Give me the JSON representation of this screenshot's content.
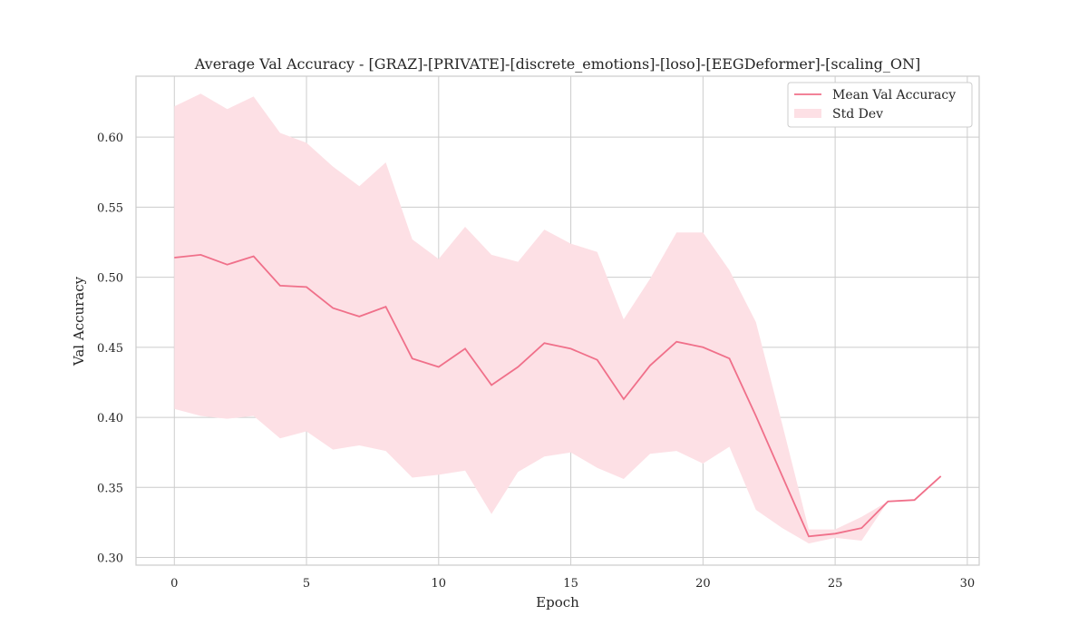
{
  "chart_data": {
    "type": "line",
    "title": "Average Val Accuracy - [GRAZ]-[PRIVATE]-[discrete_emotions]-[loso]-[EEGDeformer]-[scaling_ON]",
    "xlabel": "Epoch",
    "ylabel": "Val Accuracy",
    "xlim": [
      -1.45,
      30.45
    ],
    "ylim": [
      0.2945,
      0.6435
    ],
    "xticks": [
      0,
      5,
      10,
      15,
      20,
      25,
      30
    ],
    "yticks": [
      0.3,
      0.35,
      0.4,
      0.45,
      0.5,
      0.55,
      0.6
    ],
    "grid": true,
    "legend_position": "top-right",
    "colors": {
      "line": "#f0708a",
      "band": "#fde0e5",
      "grid": "#cccccc",
      "spine": "#cccccc"
    },
    "x": [
      0,
      1,
      2,
      3,
      4,
      5,
      6,
      7,
      8,
      9,
      10,
      11,
      12,
      13,
      14,
      15,
      16,
      17,
      18,
      19,
      20,
      21,
      22,
      23,
      24,
      25,
      26,
      27,
      28,
      29
    ],
    "series": [
      {
        "name": "Mean Val Accuracy",
        "values": [
          0.514,
          0.516,
          0.509,
          0.515,
          0.494,
          0.493,
          0.478,
          0.472,
          0.479,
          0.442,
          0.436,
          0.449,
          0.423,
          0.436,
          0.453,
          0.449,
          0.441,
          0.413,
          0.437,
          0.454,
          0.45,
          0.442,
          0.401,
          0.358,
          0.315,
          0.317,
          0.321,
          0.34,
          0.341,
          0.358
        ]
      }
    ],
    "band": {
      "name": "Std Dev",
      "upper": [
        0.622,
        0.631,
        0.62,
        0.629,
        0.603,
        0.596,
        0.579,
        0.565,
        0.582,
        0.527,
        0.513,
        0.536,
        0.516,
        0.511,
        0.534,
        0.524,
        0.518,
        0.47,
        0.499,
        0.532,
        0.532,
        0.505,
        0.468,
        0.395,
        0.32,
        0.32,
        0.329,
        0.34,
        0.341,
        0.358
      ],
      "lower": [
        0.406,
        0.401,
        0.399,
        0.401,
        0.385,
        0.39,
        0.377,
        0.38,
        0.376,
        0.357,
        0.359,
        0.362,
        0.331,
        0.361,
        0.372,
        0.375,
        0.364,
        0.356,
        0.374,
        0.376,
        0.367,
        0.379,
        0.334,
        0.321,
        0.31,
        0.314,
        0.312,
        0.34,
        0.341,
        0.358
      ]
    }
  }
}
